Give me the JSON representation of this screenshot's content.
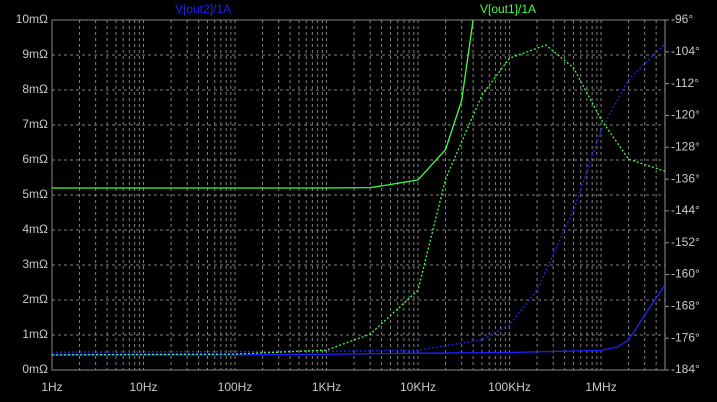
{
  "chart_data": {
    "type": "line",
    "xscale": "log",
    "grid": true,
    "xlim": [
      1,
      5000000
    ],
    "xticks": [
      {
        "value": 1,
        "label": "1Hz"
      },
      {
        "value": 10,
        "label": "10Hz"
      },
      {
        "value": 100,
        "label": "100Hz"
      },
      {
        "value": 1000,
        "label": "1KHz"
      },
      {
        "value": 10000,
        "label": "10KHz"
      },
      {
        "value": 100000,
        "label": "100KHz"
      },
      {
        "value": 1000000,
        "label": "1MHz"
      }
    ],
    "ylim": [
      0,
      10
    ],
    "yticks": [
      {
        "value": 0,
        "label": "0mΩ"
      },
      {
        "value": 1,
        "label": "1mΩ"
      },
      {
        "value": 2,
        "label": "2mΩ"
      },
      {
        "value": 3,
        "label": "3mΩ"
      },
      {
        "value": 4,
        "label": "4mΩ"
      },
      {
        "value": 5,
        "label": "5mΩ"
      },
      {
        "value": 6,
        "label": "6mΩ"
      },
      {
        "value": 7,
        "label": "7mΩ"
      },
      {
        "value": 8,
        "label": "8mΩ"
      },
      {
        "value": 9,
        "label": "9mΩ"
      },
      {
        "value": 10,
        "label": "10mΩ"
      }
    ],
    "y2lim": [
      -184,
      -96
    ],
    "y2ticks": [
      {
        "value": -184,
        "label": "-184°"
      },
      {
        "value": -176,
        "label": "-176°"
      },
      {
        "value": -168,
        "label": "-168°"
      },
      {
        "value": -160,
        "label": "-160°"
      },
      {
        "value": -152,
        "label": "-152°"
      },
      {
        "value": -144,
        "label": "-144°"
      },
      {
        "value": -136,
        "label": "-136°"
      },
      {
        "value": -128,
        "label": "-128°"
      },
      {
        "value": -120,
        "label": "-120°"
      },
      {
        "value": -112,
        "label": "-112°"
      },
      {
        "value": -104,
        "label": "-104°"
      },
      {
        "value": -96,
        "label": "-96°"
      }
    ],
    "series": [
      {
        "name": "V[out2]/1A",
        "color": "#2020ff",
        "dashed": false,
        "x": [
          1,
          100,
          1000,
          10000,
          100000,
          1000000,
          1500000,
          2000000,
          3000000,
          5000000
        ],
        "values": [
          0.43,
          0.43,
          0.45,
          0.48,
          0.5,
          0.56,
          0.65,
          0.86,
          1.57,
          2.43
        ]
      },
      {
        "color": "#2020ff",
        "dashed": true,
        "axis": "y2",
        "x": [
          1,
          1000,
          10000,
          50000,
          100000,
          200000,
          500000,
          1000000,
          2000000,
          5000000
        ],
        "values": [
          -179.5,
          -179.3,
          -179,
          -176.4,
          -172.7,
          -163.9,
          -143.8,
          -123.7,
          -111,
          -102
        ]
      },
      {
        "name": "V[out1]/1A",
        "color": "#40ff40",
        "dashed": false,
        "x": [
          1,
          1000,
          3000,
          5000,
          10000,
          20000,
          30000,
          40000
        ],
        "values": [
          5.2,
          5.2,
          5.21,
          5.3,
          5.43,
          6.3,
          7.7,
          10
        ]
      },
      {
        "color": "#40ff40",
        "dashed": true,
        "axis": "y2",
        "x": [
          1,
          100,
          1000,
          3000,
          10000,
          20000,
          50000,
          100000,
          250000,
          500000,
          1000000,
          2000000,
          5000000
        ],
        "values": [
          -180.2,
          -180,
          -179,
          -175,
          -163.9,
          -136,
          -114.9,
          -105.6,
          -102.3,
          -108,
          -121,
          -131,
          -134
        ]
      }
    ]
  }
}
